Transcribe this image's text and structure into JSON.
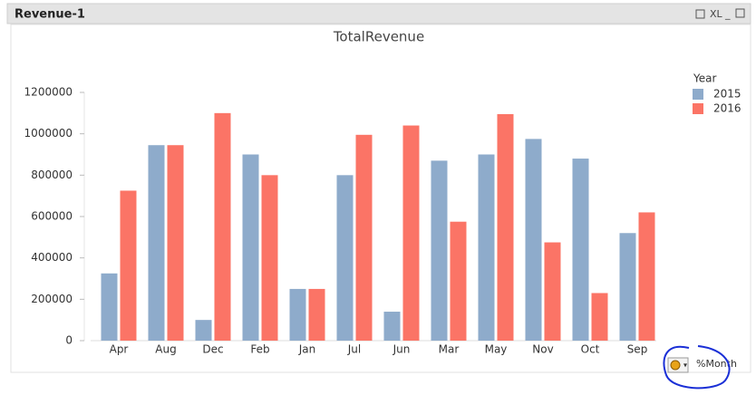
{
  "window": {
    "title": "Revenue-1",
    "button": "XL"
  },
  "chart_data": {
    "type": "bar",
    "title": "TotalRevenue",
    "legend_title": "Year",
    "x_label": "%Month",
    "categories": [
      "Apr",
      "Aug",
      "Dec",
      "Feb",
      "Jan",
      "Jul",
      "Jun",
      "Mar",
      "May",
      "Nov",
      "Oct",
      "Sep"
    ],
    "series": [
      {
        "name": "2015",
        "color": "#8eabcb",
        "values": [
          325000,
          945000,
          100000,
          900000,
          250000,
          800000,
          140000,
          870000,
          900000,
          975000,
          880000,
          520000
        ]
      },
      {
        "name": "2016",
        "color": "#fb7466",
        "values": [
          725000,
          945000,
          1100000,
          800000,
          250000,
          995000,
          1040000,
          575000,
          1095000,
          475000,
          230000,
          620000
        ]
      }
    ],
    "ylim": [
      0,
      1200000
    ],
    "yticks": [
      0,
      200000,
      400000,
      600000,
      800000,
      1000000,
      1200000
    ],
    "grid": false,
    "legend": "top-right"
  }
}
